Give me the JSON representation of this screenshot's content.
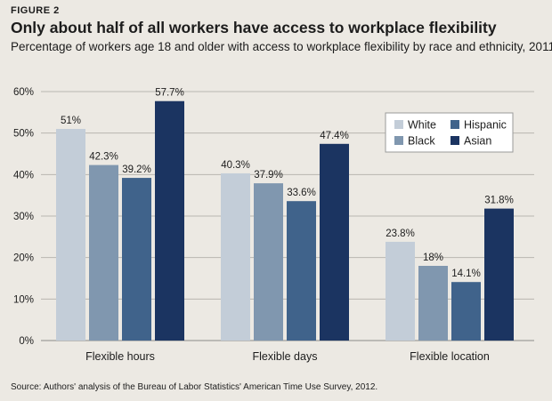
{
  "figure_label": "FIGURE 2",
  "source": "Source: Authors' analysis of the Bureau of Labor Statistics' American Time Use Survey, 2012.",
  "colors": {
    "background": "#ece9e3",
    "White": "#c3cdd8",
    "Black": "#8097af",
    "Hispanic": "#40638b",
    "Asian": "#1b3461"
  },
  "chart_data": {
    "type": "bar",
    "title": "Only about half of all workers have access to workplace flexibility",
    "subtitle": "Percentage of workers age 18 and older with access to workplace flexibility by race and ethnicity, 2011",
    "categories": [
      "Flexible hours",
      "Flexible days",
      "Flexible location"
    ],
    "series": [
      {
        "name": "White",
        "values": [
          51,
          40.3,
          23.8
        ],
        "labels": [
          "51%",
          "40.3%",
          "23.8%"
        ]
      },
      {
        "name": "Black",
        "values": [
          42.3,
          37.9,
          18
        ],
        "labels": [
          "42.3%",
          "37.9%",
          "18%"
        ]
      },
      {
        "name": "Hispanic",
        "values": [
          39.2,
          33.6,
          14.1
        ],
        "labels": [
          "39.2%",
          "33.6%",
          "14.1%"
        ]
      },
      {
        "name": "Asian",
        "values": [
          57.7,
          47.4,
          31.8
        ],
        "labels": [
          "57.7%",
          "47.4%",
          "31.8%"
        ]
      }
    ],
    "ylim": [
      0,
      60
    ],
    "yticks": [
      0,
      10,
      20,
      30,
      40,
      50,
      60
    ],
    "ytick_labels": [
      "0%",
      "10%",
      "20%",
      "30%",
      "40%",
      "50%",
      "60%"
    ],
    "xlabel": "",
    "ylabel": "",
    "legend": {
      "placement": "top-right",
      "entries": [
        "White",
        "Hispanic",
        "Black",
        "Asian"
      ]
    }
  }
}
